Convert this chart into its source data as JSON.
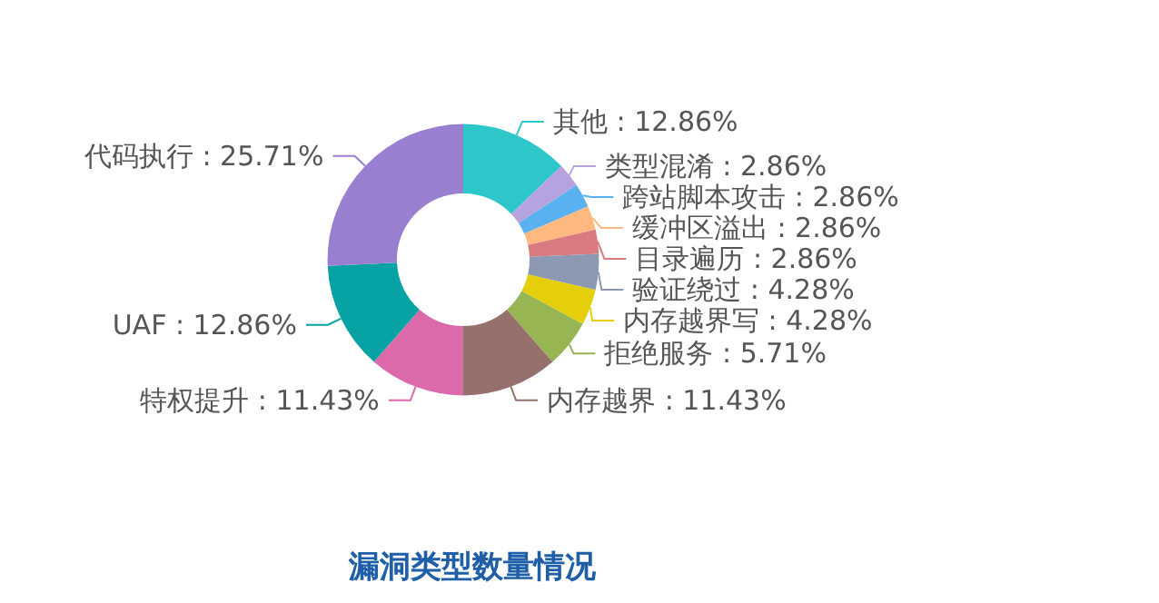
{
  "chart_data": {
    "type": "donut",
    "title": "漏洞类型数量情况",
    "categories": [
      "其他",
      "类型混淆",
      "跨站脚本攻击",
      "缓冲区溢出",
      "目录遍历",
      "验证绕过",
      "内存越界写",
      "拒绝服务",
      "内存越界",
      "特权提升",
      "UAF",
      "代码执行"
    ],
    "values": [
      12.86,
      2.86,
      2.86,
      2.86,
      2.86,
      4.28,
      4.28,
      5.71,
      11.43,
      11.43,
      12.86,
      25.71
    ],
    "value_labels": [
      "12.86%",
      "2.86%",
      "2.86%",
      "2.86%",
      "2.86%",
      "4.28%",
      "4.28%",
      "5.71%",
      "11.43%",
      "11.43%",
      "12.86%",
      "25.71%"
    ],
    "colors": [
      "#2ec7c9",
      "#b6a2de",
      "#5ab1ef",
      "#ffb980",
      "#d87a80",
      "#8d98b3",
      "#e5cf0d",
      "#97b552",
      "#95706d",
      "#dc69aa",
      "#07a2a4",
      "#9a7fd1"
    ],
    "legend": false
  }
}
